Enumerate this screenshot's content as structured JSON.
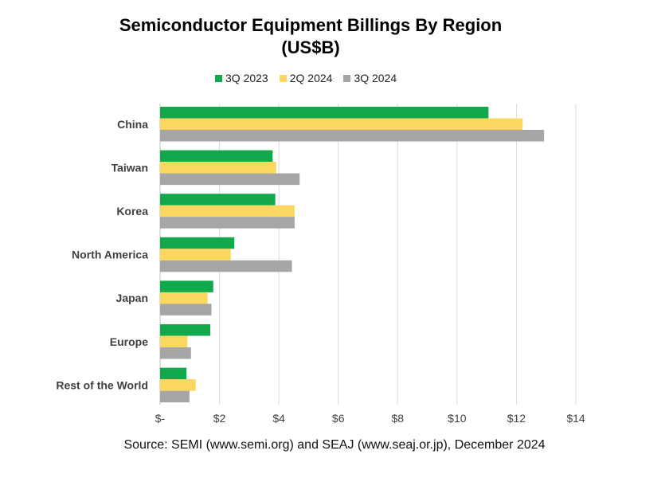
{
  "chart_data": {
    "type": "bar",
    "orientation": "horizontal",
    "title": "Semiconductor Equipment Billings By Region",
    "subtitle": "(US$B)",
    "categories": [
      "China",
      "Taiwan",
      "Korea",
      "North America",
      "Japan",
      "Europe",
      "Rest of the World"
    ],
    "series": [
      {
        "name": "3Q 2023",
        "color": "#12a84c",
        "values": [
          11.06,
          3.79,
          3.88,
          2.5,
          1.79,
          1.69,
          0.89
        ]
      },
      {
        "name": "2Q 2024",
        "color": "#fbd760",
        "values": [
          12.21,
          3.91,
          4.53,
          2.38,
          1.6,
          0.92,
          1.2
        ]
      },
      {
        "name": "3Q 2024",
        "color": "#a6a6a6",
        "values": [
          12.93,
          4.7,
          4.53,
          4.44,
          1.73,
          1.04,
          0.99
        ]
      }
    ],
    "xlim": [
      0,
      14
    ],
    "xticks": [
      0,
      2,
      4,
      6,
      8,
      10,
      12,
      14
    ],
    "xtick_labels": [
      "$-",
      "$2",
      "$4",
      "$6",
      "$8",
      "$10",
      "$12",
      "$14"
    ],
    "grid": "vertical",
    "legend_position": "top"
  },
  "source": "Source: SEMI (www.semi.org) and SEAJ (www.seaj.or.jp), December 2024"
}
